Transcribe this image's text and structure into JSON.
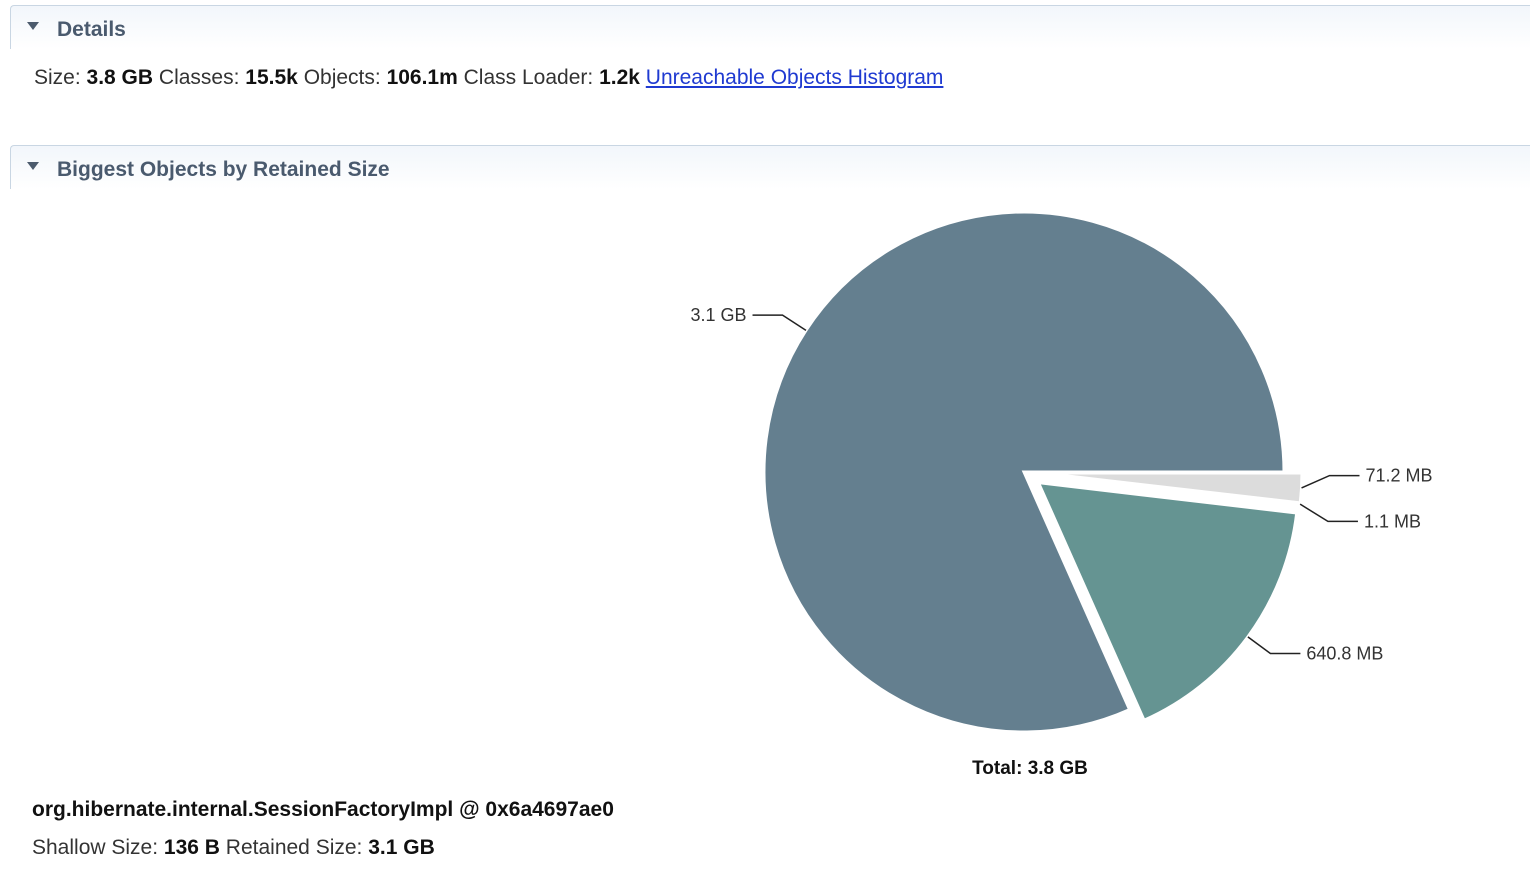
{
  "details": {
    "title": "Details",
    "size_label": "Size:",
    "size_value": "3.8 GB",
    "classes_label": "Classes:",
    "classes_value": "15.5k",
    "objects_label": "Objects:",
    "objects_value": "106.1m",
    "class_loader_label": "Class Loader:",
    "class_loader_value": "1.2k",
    "histogram_link": "Unreachable Objects Histogram"
  },
  "biggest": {
    "title": "Biggest Objects by Retained Size"
  },
  "chart_data": {
    "type": "pie",
    "slices": [
      {
        "label": "3.1 GB",
        "value_mb": 3174.4,
        "color": "#647f8f",
        "exploded": false
      },
      {
        "label": "640.8 MB",
        "value_mb": 640.8,
        "color": "#659492",
        "exploded": true
      },
      {
        "label": "1.1 MB",
        "value_mb": 1.1,
        "color": "#dcdcdc",
        "exploded": true
      },
      {
        "label": "71.2 MB",
        "value_mb": 71.2,
        "color": "#dcdcdc",
        "exploded": true
      }
    ],
    "total_label": "Total: 3.8 GB"
  },
  "selected_object": {
    "name": "org.hibernate.internal.SessionFactoryImpl @ 0x6a4697ae0",
    "shallow_label": "Shallow Size:",
    "shallow_value": "136 B",
    "retained_label": "Retained Size:",
    "retained_value": "3.1 GB"
  }
}
